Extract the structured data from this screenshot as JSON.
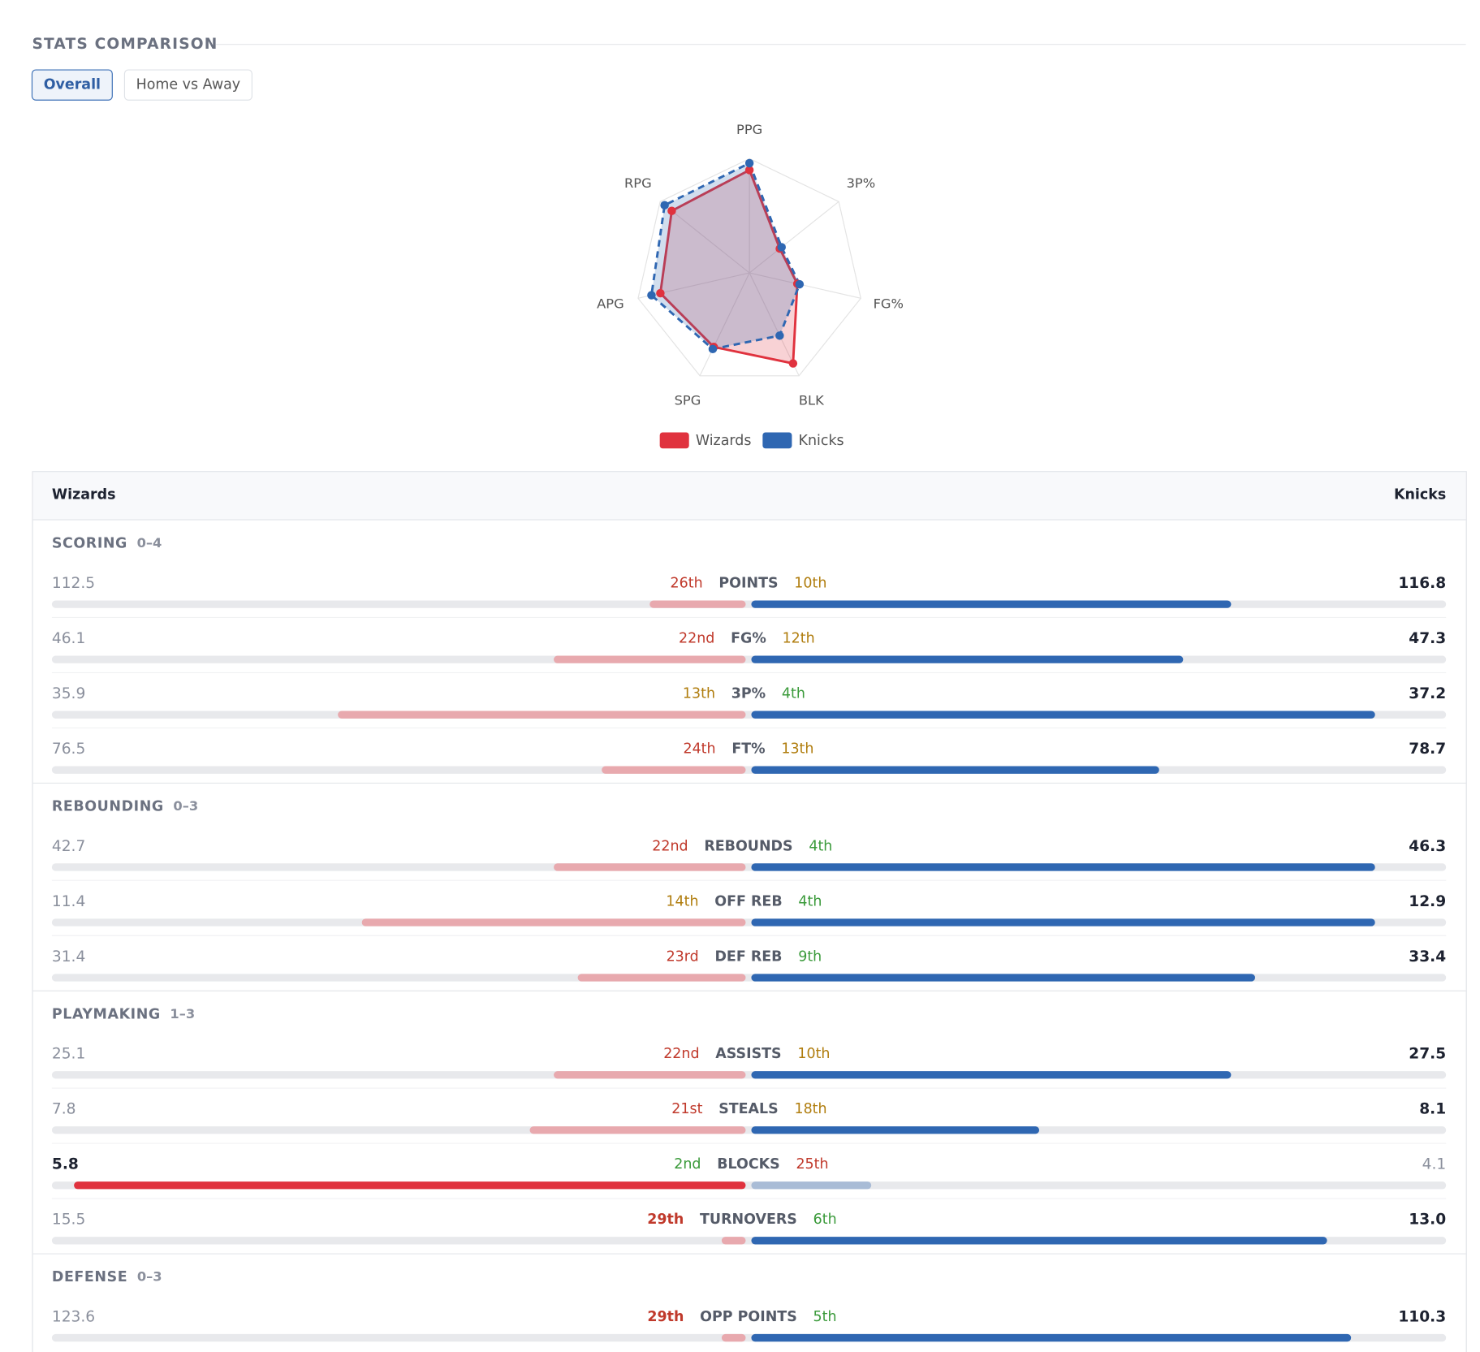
{
  "header": {
    "title": "STATS COMPARISON",
    "tabs": [
      "Overall",
      "Home vs Away"
    ]
  },
  "chart_data": {
    "type": "radar",
    "categories": [
      "PPG",
      "3P%",
      "FG%",
      "BLK",
      "SPG",
      "APG",
      "RPG"
    ],
    "rlim": [
      0,
      100
    ],
    "rticks": [
      20,
      40,
      60,
      80,
      100
    ],
    "series": [
      {
        "name": "Wizards",
        "color": "#e0323e",
        "values": [
          90,
          34,
          43,
          88,
          72,
          80,
          87
        ]
      },
      {
        "name": "Knicks",
        "color": "#2f67b2",
        "values": [
          96,
          36,
          45,
          61,
          74,
          88,
          95
        ]
      }
    ]
  },
  "table": {
    "teams": [
      "Wizards",
      "Knicks"
    ],
    "sections": [
      {
        "name": "SCORING",
        "record": "0–4",
        "rows": [
          {
            "stat": "POINTS",
            "wizards": "112.5",
            "wizards_rank": {
              "value": 26,
              "label": "26th"
            },
            "knicks": "116.8",
            "knicks_rank": {
              "value": 10,
              "label": "10th"
            }
          },
          {
            "stat": "FG%",
            "wizards": "46.1",
            "wizards_rank": {
              "value": 22,
              "label": "22nd"
            },
            "knicks": "47.3",
            "knicks_rank": {
              "value": 12,
              "label": "12th"
            }
          },
          {
            "stat": "3P%",
            "wizards": "35.9",
            "wizards_rank": {
              "value": 13,
              "label": "13th"
            },
            "knicks": "37.2",
            "knicks_rank": {
              "value": 4,
              "label": "4th"
            }
          },
          {
            "stat": "FT%",
            "wizards": "76.5",
            "wizards_rank": {
              "value": 24,
              "label": "24th"
            },
            "knicks": "78.7",
            "knicks_rank": {
              "value": 13,
              "label": "13th"
            }
          }
        ]
      },
      {
        "name": "REBOUNDING",
        "record": "0–3",
        "rows": [
          {
            "stat": "REBOUNDS",
            "wizards": "42.7",
            "wizards_rank": {
              "value": 22,
              "label": "22nd"
            },
            "knicks": "46.3",
            "knicks_rank": {
              "value": 4,
              "label": "4th"
            }
          },
          {
            "stat": "OFF REB",
            "wizards": "11.4",
            "wizards_rank": {
              "value": 14,
              "label": "14th"
            },
            "knicks": "12.9",
            "knicks_rank": {
              "value": 4,
              "label": "4th"
            }
          },
          {
            "stat": "DEF REB",
            "wizards": "31.4",
            "wizards_rank": {
              "value": 23,
              "label": "23rd"
            },
            "knicks": "33.4",
            "knicks_rank": {
              "value": 9,
              "label": "9th"
            }
          }
        ]
      },
      {
        "name": "PLAYMAKING",
        "record": "1–3",
        "rows": [
          {
            "stat": "ASSISTS",
            "wizards": "25.1",
            "wizards_rank": {
              "value": 22,
              "label": "22nd"
            },
            "knicks": "27.5",
            "knicks_rank": {
              "value": 10,
              "label": "10th"
            }
          },
          {
            "stat": "STEALS",
            "wizards": "7.8",
            "wizards_rank": {
              "value": 21,
              "label": "21st"
            },
            "knicks": "8.1",
            "knicks_rank": {
              "value": 18,
              "label": "18th"
            }
          },
          {
            "stat": "BLOCKS",
            "wizards": "5.8",
            "wizards_rank": {
              "value": 2,
              "label": "2nd"
            },
            "knicks": "4.1",
            "knicks_rank": {
              "value": 25,
              "label": "25th"
            }
          },
          {
            "stat": "TURNOVERS",
            "wizards": "15.5",
            "wizards_rank": {
              "value": 29,
              "label": "29th"
            },
            "knicks": "13.0",
            "knicks_rank": {
              "value": 6,
              "label": "6th"
            }
          }
        ]
      },
      {
        "name": "DEFENSE",
        "record": "0–3",
        "rows": [
          {
            "stat": "OPP POINTS",
            "wizards": "123.6",
            "wizards_rank": {
              "value": 29,
              "label": "29th"
            },
            "knicks": "110.3",
            "knicks_rank": {
              "value": 5,
              "label": "5th"
            }
          }
        ]
      }
    ]
  }
}
